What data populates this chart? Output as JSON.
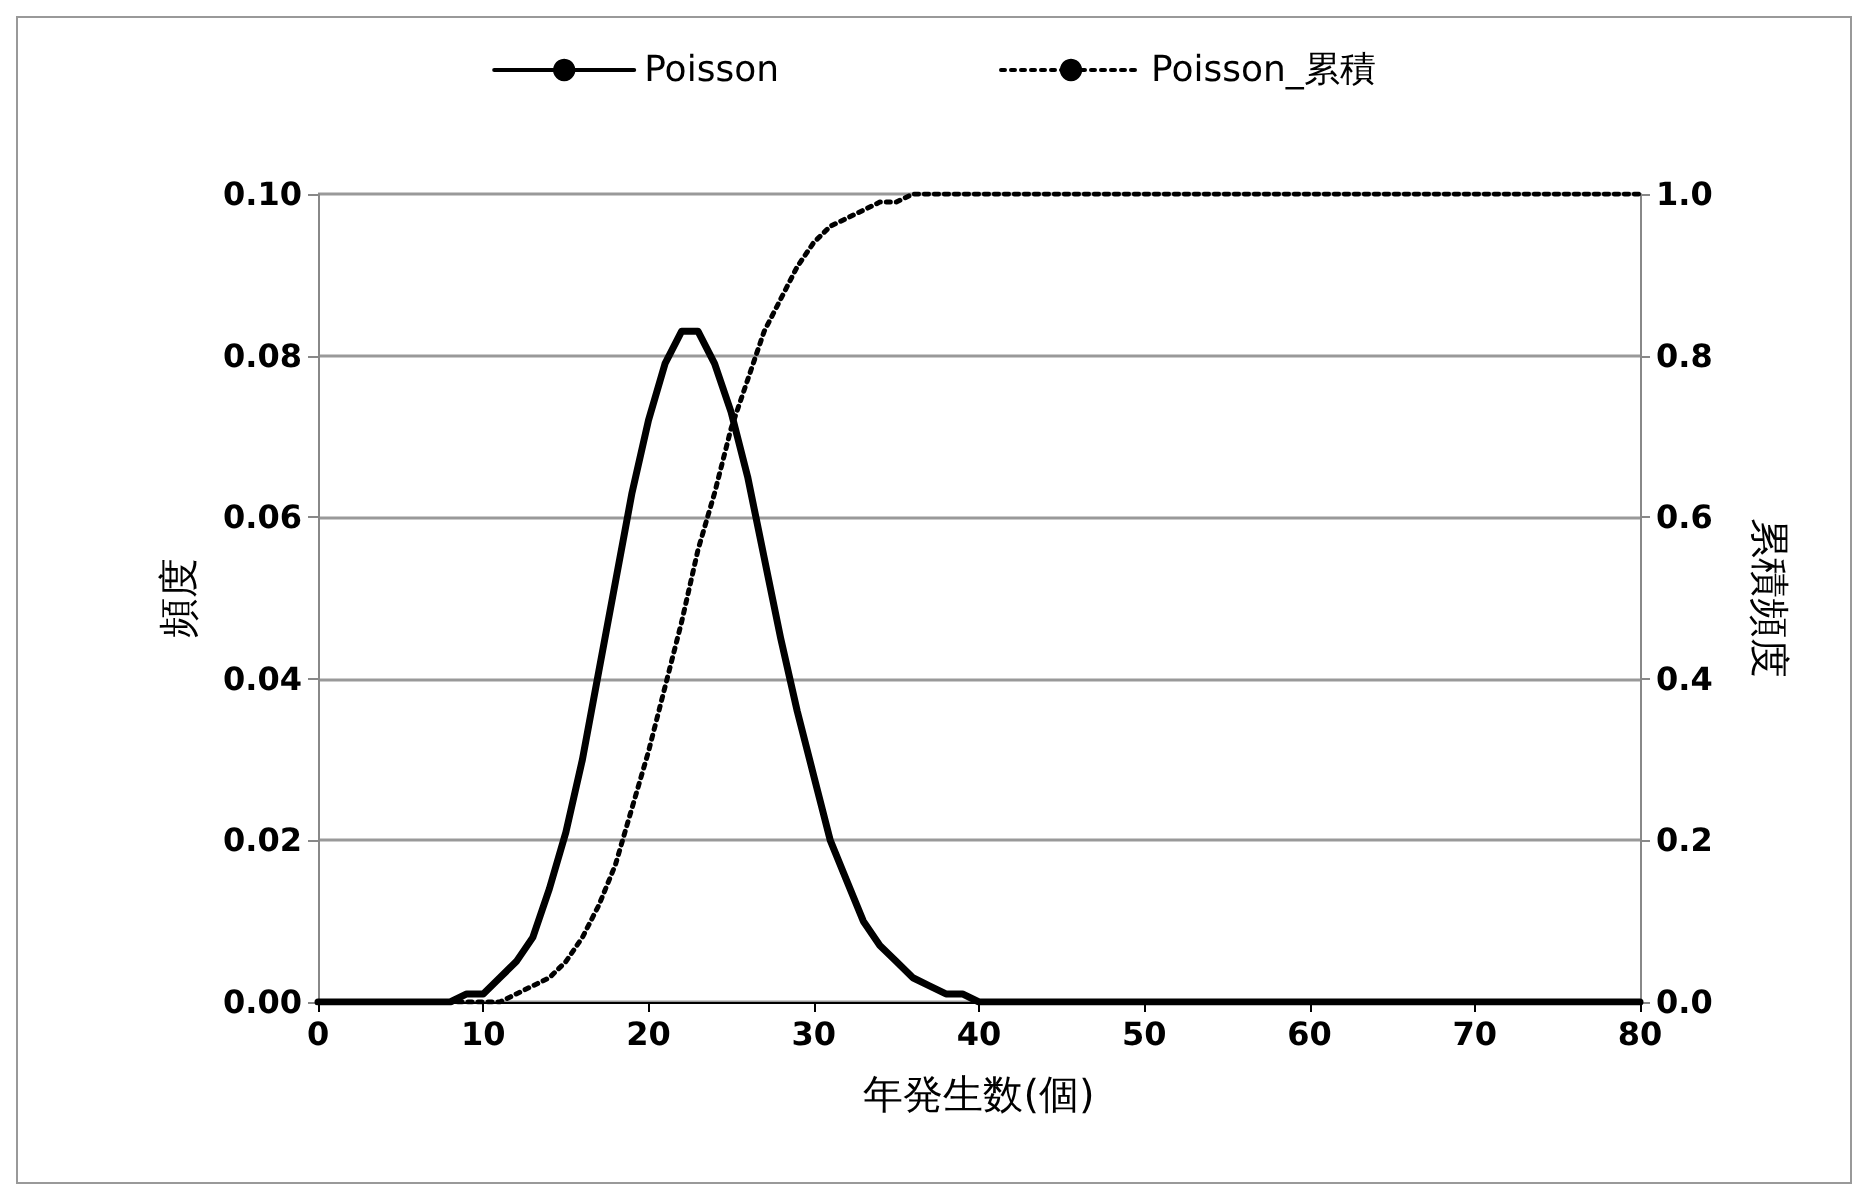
{
  "chart_data": {
    "type": "line",
    "xlabel": "年発生数(個)",
    "ylabel": "頻度",
    "y2label": "累積頻度",
    "x": [
      0,
      1,
      2,
      3,
      4,
      5,
      6,
      7,
      8,
      9,
      10,
      11,
      12,
      13,
      14,
      15,
      16,
      17,
      18,
      19,
      20,
      21,
      22,
      23,
      24,
      25,
      26,
      27,
      28,
      29,
      30,
      31,
      32,
      33,
      34,
      35,
      36,
      37,
      38,
      39,
      40,
      41,
      42,
      43,
      44,
      45,
      46,
      47,
      48,
      49,
      50,
      51,
      52,
      53,
      54,
      55,
      56,
      57,
      58,
      59,
      60,
      61,
      62,
      63,
      64,
      65,
      66,
      67,
      68,
      69,
      70,
      71,
      72,
      73,
      74,
      75,
      76,
      77,
      78,
      79,
      80
    ],
    "series": [
      {
        "name": "Poisson",
        "color": "#000000",
        "line_style": "solid",
        "values": [
          0,
          0,
          0,
          0,
          0,
          0,
          0,
          0,
          0,
          0.001,
          0.001,
          0.003,
          0.005,
          0.008,
          0.014,
          0.021,
          0.03,
          0.041,
          0.052,
          0.063,
          0.072,
          0.079,
          0.083,
          0.083,
          0.079,
          0.073,
          0.065,
          0.055,
          0.045,
          0.036,
          0.028,
          0.02,
          0.015,
          0.01,
          0.007,
          0.005,
          0.003,
          0.002,
          0.001,
          0.001,
          0,
          0,
          0,
          0,
          0,
          0,
          0,
          0,
          0,
          0,
          0,
          0,
          0,
          0,
          0,
          0,
          0,
          0,
          0,
          0,
          0,
          0,
          0,
          0,
          0,
          0,
          0,
          0,
          0,
          0,
          0,
          0,
          0,
          0,
          0,
          0,
          0,
          0,
          0,
          0,
          0
        ]
      },
      {
        "name": "Poisson_累積",
        "color": "#000000",
        "line_style": "dotted",
        "axis": "y2",
        "values": [
          0,
          0,
          0,
          0,
          0,
          0,
          0,
          0,
          0,
          0,
          0,
          0,
          0.01,
          0.02,
          0.03,
          0.05,
          0.08,
          0.12,
          0.17,
          0.24,
          0.31,
          0.39,
          0.47,
          0.56,
          0.63,
          0.71,
          0.77,
          0.83,
          0.87,
          0.91,
          0.94,
          0.96,
          0.97,
          0.98,
          0.99,
          0.99,
          1,
          1,
          1,
          1,
          1,
          1,
          1,
          1,
          1,
          1,
          1,
          1,
          1,
          1,
          1,
          1,
          1,
          1,
          1,
          1,
          1,
          1,
          1,
          1,
          1,
          1,
          1,
          1,
          1,
          1,
          1,
          1,
          1,
          1,
          1,
          1,
          1,
          1,
          1,
          1,
          1,
          1,
          1,
          1,
          1
        ]
      }
    ],
    "xlim": [
      0,
      80
    ],
    "xticks": [
      0,
      10,
      20,
      30,
      40,
      50,
      60,
      70,
      80
    ],
    "ylim": [
      0,
      0.1
    ],
    "yticks": [
      {
        "value": 0,
        "label": "0.00"
      },
      {
        "value": 0.02,
        "label": "0.02"
      },
      {
        "value": 0.04,
        "label": "0.04"
      },
      {
        "value": 0.06,
        "label": "0.06"
      },
      {
        "value": 0.08,
        "label": "0.08"
      },
      {
        "value": 0.1,
        "label": "0.10"
      }
    ],
    "y2lim": [
      0,
      1
    ],
    "y2ticks": [
      {
        "value": 0,
        "label": "0.0"
      },
      {
        "value": 0.2,
        "label": "0.2"
      },
      {
        "value": 0.4,
        "label": "0.4"
      },
      {
        "value": 0.6,
        "label": "0.6"
      },
      {
        "value": 0.8,
        "label": "0.8"
      },
      {
        "value": 1,
        "label": "1.0"
      }
    ],
    "grid": "y",
    "legend": "top",
    "marker": "none"
  }
}
